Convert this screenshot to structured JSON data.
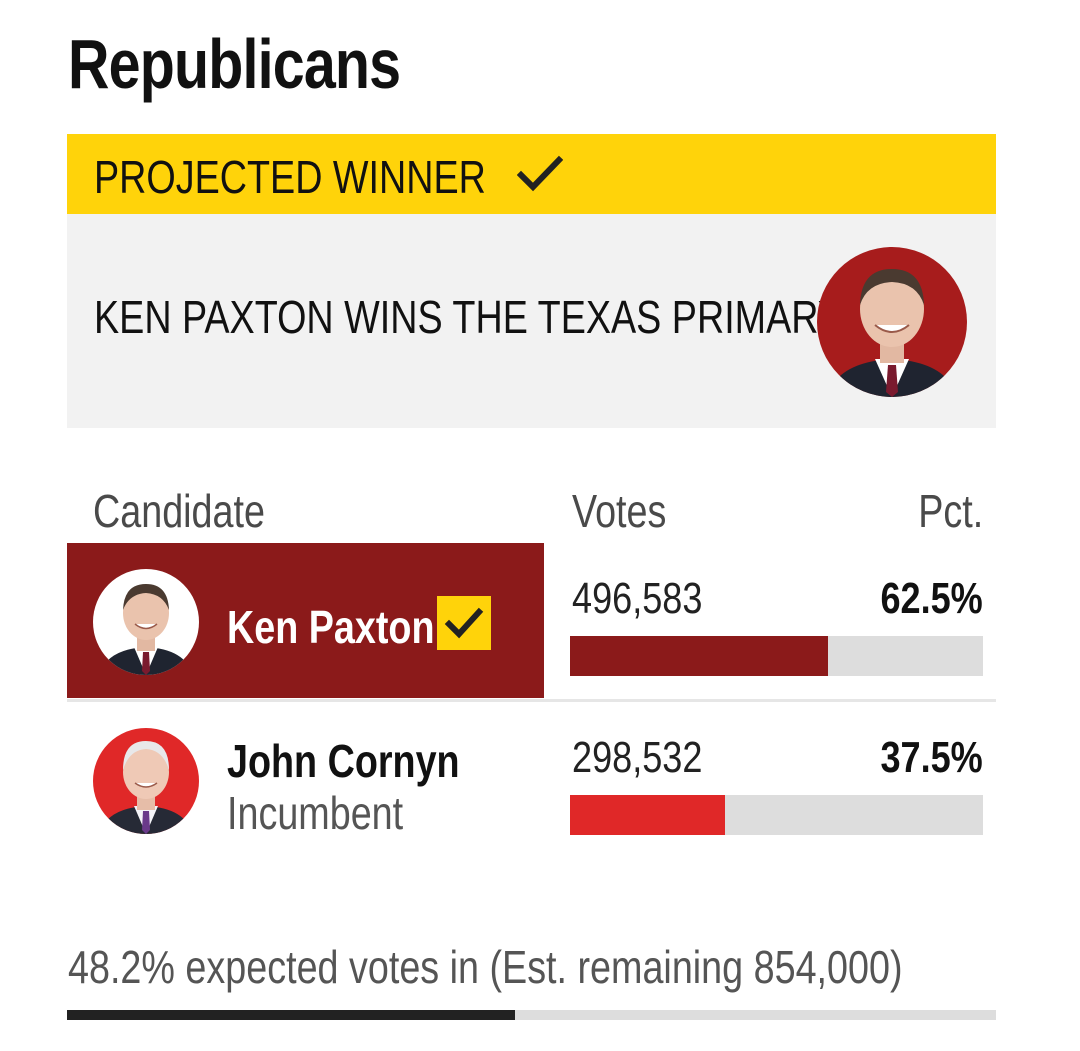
{
  "party_title": "Republicans",
  "banner": {
    "label": "PROJECTED WINNER",
    "headline": "KEN PAXTON WINS THE TEXAS PRIMARY"
  },
  "table": {
    "headers": {
      "candidate": "Candidate",
      "votes": "Votes",
      "pct": "Pct."
    },
    "rows": [
      {
        "name": "Ken Paxton",
        "subtitle": "",
        "votes": "496,583",
        "pct": "62.5%",
        "share": 0.625,
        "winner": true,
        "bar_color": "#8b1a1a"
      },
      {
        "name": "John Cornyn",
        "subtitle": "Incumbent",
        "votes": "298,532",
        "pct": "37.5%",
        "share": 0.375,
        "winner": false,
        "bar_color": "#e02828"
      }
    ]
  },
  "expected": {
    "text": "48.2% expected votes in (Est. remaining 854,000)",
    "fraction": 0.482
  },
  "colors": {
    "accent_yellow": "#ffd30a",
    "winner_red": "#8b1a1a",
    "candidate_red": "#e02828"
  },
  "icons": [
    "check-icon",
    "winner-check-icon",
    "candidate-photo"
  ]
}
